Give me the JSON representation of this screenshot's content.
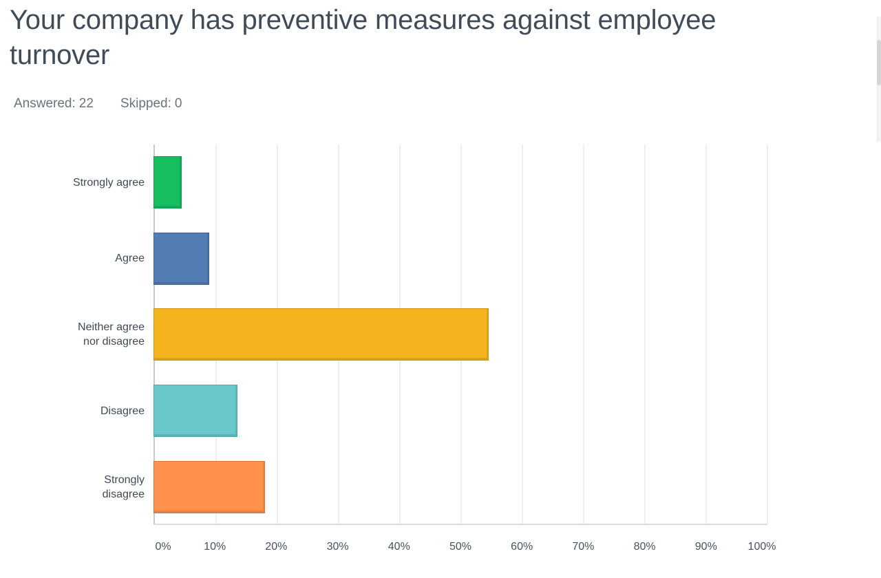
{
  "header": {
    "title": "Your company has preventive measures against employee\nturnover",
    "answered_label": "Answered:",
    "answered_value": "22",
    "skipped_label": "Skipped:",
    "skipped_value": "0"
  },
  "chart_data": {
    "type": "bar",
    "orientation": "horizontal",
    "title": "Your company has preventive measures against employee turnover",
    "categories": [
      "Strongly agree",
      "Agree",
      "Neither agree nor disagree",
      "Disagree",
      "Strongly disagree"
    ],
    "values": [
      4.55,
      9.09,
      54.55,
      13.64,
      18.18
    ],
    "value_unit": "%",
    "colors": [
      "#16be60",
      "#527cb4",
      "#f5b41e",
      "#6ac8cc",
      "#ff914d"
    ],
    "x_ticks": [
      "0%",
      "10%",
      "20%",
      "30%",
      "40%",
      "50%",
      "60%",
      "70%",
      "80%",
      "90%",
      "100%"
    ],
    "xlim": [
      0,
      100
    ],
    "grid": true,
    "legend": "none",
    "axis_color": "#cccccc",
    "gridline_color": "#efefef"
  }
}
